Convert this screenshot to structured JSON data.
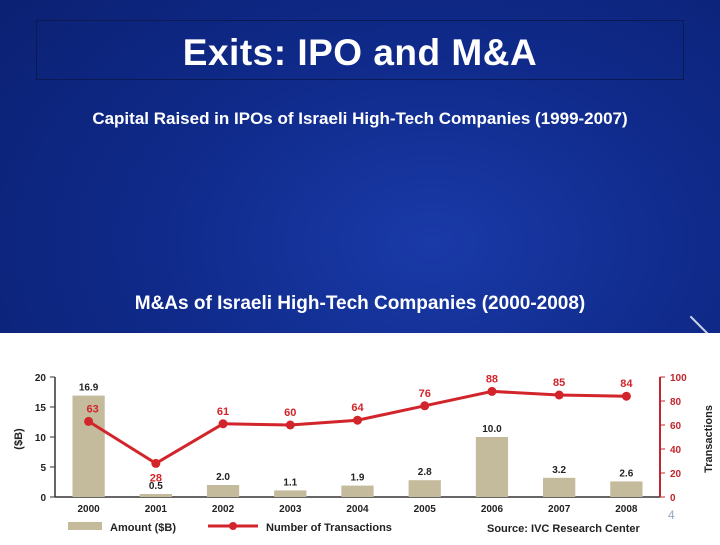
{
  "slide": {
    "title": "Exits: IPO and M&A",
    "subtitle_ipo": "Capital Raised in IPOs of Israeli High-Tech Companies (1999-2007)",
    "subtitle_ma": "M&As of Israeli High-Tech Companies (2000-2008)",
    "page_number": "4"
  },
  "colors": {
    "background": "#0f2a8a",
    "bar": "#c4bb9c",
    "line": "#d1252b",
    "right_axis": "#c0262c"
  },
  "chart_data": {
    "type": "bar",
    "categories": [
      "2000",
      "2001",
      "2002",
      "2003",
      "2004",
      "2005",
      "2006",
      "2007",
      "2008"
    ],
    "series": [
      {
        "name": "Amount ($B)",
        "type": "bar",
        "axis": "left",
        "values": [
          16.9,
          0.5,
          2.0,
          1.1,
          1.9,
          2.8,
          10.0,
          3.2,
          2.6
        ],
        "labels": [
          "16.9",
          "0.5",
          "2.0",
          "1.1",
          "1.9",
          "2.8",
          "10.0",
          "3.2",
          "2.6"
        ]
      },
      {
        "name": "Number of Transactions",
        "type": "line",
        "axis": "right",
        "values": [
          63,
          28,
          61,
          60,
          64,
          76,
          88,
          85,
          84
        ],
        "labels": [
          "63",
          "28",
          "61",
          "60",
          "64",
          "76",
          "88",
          "85",
          "84"
        ]
      }
    ],
    "ylabel": "($B)",
    "y2label": "Transactions",
    "ylim": [
      0,
      20
    ],
    "y2lim": [
      0,
      100
    ],
    "yticks": [
      "0",
      "5",
      "10",
      "15",
      "20"
    ],
    "y2ticks": [
      "0",
      "20",
      "40",
      "60",
      "80",
      "100"
    ],
    "source": "Source: IVC Research Center",
    "grid": false,
    "legend": "bottom"
  }
}
